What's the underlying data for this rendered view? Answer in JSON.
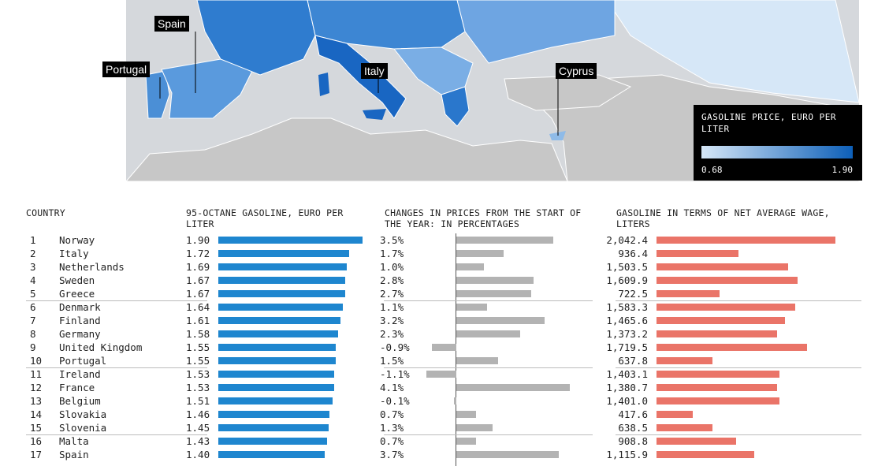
{
  "map": {
    "labels": {
      "spain": "Spain",
      "portugal": "Portugal",
      "italy": "Italy",
      "cyprus": "Cyprus"
    },
    "legend": {
      "title": "GASOLINE PRICE, EURO PER LITER",
      "min": "0.68",
      "max": "1.90",
      "color_low": "#d6e7f7",
      "color_high": "#0d5fb8"
    }
  },
  "headers": {
    "country": "COUNTRY",
    "price": "95-OCTANE GASOLINE, EURO PER LITER",
    "change": "CHANGES IN PRICES FROM THE START OF THE YEAR: IN PERCENTAGES",
    "liters": "GASOLINE IN TERMS OF NET AVERAGE WAGE, LITERS"
  },
  "chart_data": {
    "type": "table",
    "colors": {
      "price": "#1e86cf",
      "change": "#b3b3b3",
      "liters": "#ea7468"
    },
    "rows": [
      {
        "rank": "1",
        "country": "Norway",
        "price": 1.9,
        "price_text": "1.90",
        "change": 3.5,
        "change_text": "3.5%",
        "liters": 2042.4,
        "liters_text": "2,042.4"
      },
      {
        "rank": "2",
        "country": "Italy",
        "price": 1.72,
        "price_text": "1.72",
        "change": 1.7,
        "change_text": "1.7%",
        "liters": 936.4,
        "liters_text": "936.4"
      },
      {
        "rank": "3",
        "country": "Netherlands",
        "price": 1.69,
        "price_text": "1.69",
        "change": 1.0,
        "change_text": "1.0%",
        "liters": 1503.5,
        "liters_text": "1,503.5"
      },
      {
        "rank": "4",
        "country": "Sweden",
        "price": 1.67,
        "price_text": "1.67",
        "change": 2.8,
        "change_text": "2.8%",
        "liters": 1609.9,
        "liters_text": "1,609.9"
      },
      {
        "rank": "5",
        "country": "Greece",
        "price": 1.67,
        "price_text": "1.67",
        "change": 2.7,
        "change_text": "2.7%",
        "liters": 722.5,
        "liters_text": "722.5"
      },
      {
        "rank": "6",
        "country": "Denmark",
        "price": 1.64,
        "price_text": "1.64",
        "change": 1.1,
        "change_text": "1.1%",
        "liters": 1583.3,
        "liters_text": "1,583.3"
      },
      {
        "rank": "7",
        "country": "Finland",
        "price": 1.61,
        "price_text": "1.61",
        "change": 3.2,
        "change_text": "3.2%",
        "liters": 1465.6,
        "liters_text": "1,465.6"
      },
      {
        "rank": "8",
        "country": "Germany",
        "price": 1.58,
        "price_text": "1.58",
        "change": 2.3,
        "change_text": "2.3%",
        "liters": 1373.2,
        "liters_text": "1,373.2"
      },
      {
        "rank": "9",
        "country": "United Kingdom",
        "price": 1.55,
        "price_text": "1.55",
        "change": -0.9,
        "change_text": "-0.9%",
        "liters": 1719.5,
        "liters_text": "1,719.5"
      },
      {
        "rank": "10",
        "country": "Portugal",
        "price": 1.55,
        "price_text": "1.55",
        "change": 1.5,
        "change_text": "1.5%",
        "liters": 637.8,
        "liters_text": "637.8"
      },
      {
        "rank": "11",
        "country": "Ireland",
        "price": 1.53,
        "price_text": "1.53",
        "change": -1.1,
        "change_text": "-1.1%",
        "liters": 1403.1,
        "liters_text": "1,403.1"
      },
      {
        "rank": "12",
        "country": "France",
        "price": 1.53,
        "price_text": "1.53",
        "change": 4.1,
        "change_text": "4.1%",
        "liters": 1380.7,
        "liters_text": "1,380.7"
      },
      {
        "rank": "13",
        "country": "Belgium",
        "price": 1.51,
        "price_text": "1.51",
        "change": -0.1,
        "change_text": "-0.1%",
        "liters": 1401.0,
        "liters_text": "1,401.0"
      },
      {
        "rank": "14",
        "country": "Slovakia",
        "price": 1.46,
        "price_text": "1.46",
        "change": 0.7,
        "change_text": "0.7%",
        "liters": 417.6,
        "liters_text": "417.6"
      },
      {
        "rank": "15",
        "country": "Slovenia",
        "price": 1.45,
        "price_text": "1.45",
        "change": 1.3,
        "change_text": "1.3%",
        "liters": 638.5,
        "liters_text": "638.5"
      },
      {
        "rank": "16",
        "country": "Malta",
        "price": 1.43,
        "price_text": "1.43",
        "change": 0.7,
        "change_text": "0.7%",
        "liters": 908.8,
        "liters_text": "908.8"
      },
      {
        "rank": "17",
        "country": "Spain",
        "price": 1.4,
        "price_text": "1.40",
        "change": 3.7,
        "change_text": "3.7%",
        "liters": 1115.9,
        "liters_text": "1,115.9"
      }
    ]
  }
}
